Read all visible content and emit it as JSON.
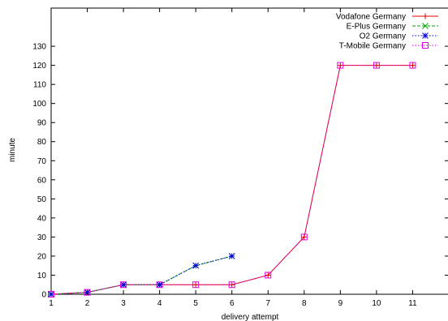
{
  "chart_data": {
    "type": "line",
    "title": "",
    "xlabel": "delivery attempt",
    "ylabel": "minute",
    "xlim": [
      1,
      12
    ],
    "ylim": [
      0,
      150
    ],
    "x_ticks": [
      1,
      2,
      3,
      4,
      5,
      6,
      7,
      8,
      9,
      10,
      11
    ],
    "y_ticks": [
      0,
      10,
      20,
      30,
      40,
      50,
      60,
      70,
      80,
      90,
      100,
      110,
      120,
      130
    ],
    "grid": false,
    "legend_position": "top-right",
    "series": [
      {
        "name": "Vodafone Germany",
        "color": "#e00000",
        "marker": "plus",
        "dash": "solid",
        "x": [
          1,
          2,
          3,
          4,
          5,
          6,
          7,
          8,
          9,
          10,
          11
        ],
        "values": [
          0,
          1,
          5,
          5,
          5,
          5,
          10,
          30,
          120,
          120,
          120
        ]
      },
      {
        "name": "E-Plus Germany",
        "color": "#00a000",
        "marker": "cross",
        "dash": "dashed",
        "x": [
          1,
          2,
          3,
          4,
          5,
          6
        ],
        "values": [
          0,
          1,
          5,
          5,
          15,
          20
        ]
      },
      {
        "name": "O2 Germany",
        "color": "#0000e0",
        "marker": "star",
        "dash": "dotted",
        "x": [
          1,
          2,
          3,
          4,
          5,
          6
        ],
        "values": [
          0,
          1,
          5,
          5,
          15,
          20
        ]
      },
      {
        "name": "T-Mobile Germany",
        "color": "#e000e0",
        "marker": "square",
        "dash": "dotted",
        "x": [
          1,
          2,
          3,
          4,
          5,
          6,
          7,
          8,
          9,
          10,
          11
        ],
        "values": [
          0,
          1,
          5,
          5,
          5,
          5,
          10,
          30,
          120,
          120,
          120
        ]
      }
    ]
  }
}
